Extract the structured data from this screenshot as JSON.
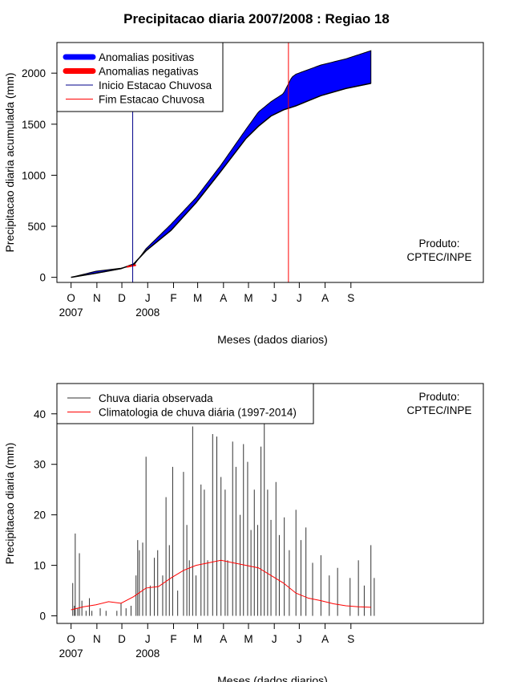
{
  "title": "Precipitacao diaria 2007/2008 : Regiao 18",
  "chart_data": [
    {
      "type": "area",
      "name": "accumulated",
      "xlabel": "Meses (dados diarios)",
      "ylabel": "Precipitacao diaria acumulada (mm)",
      "ylim": [
        -50,
        2300
      ],
      "yticks": [
        0,
        500,
        1000,
        1500,
        2000
      ],
      "month_labels": [
        "O",
        "N",
        "D",
        "J",
        "F",
        "M",
        "A",
        "M",
        "J",
        "J",
        "A",
        "S"
      ],
      "year_labels": [
        {
          "month_index": 0,
          "text": "2007"
        },
        {
          "month_index": 3,
          "text": "2008"
        }
      ],
      "x_unit": "days since Oct 1 2007",
      "xlim": [
        -17,
        495
      ],
      "climatology_accumulated": {
        "x": [
          0,
          30,
          60,
          75,
          90,
          120,
          150,
          180,
          210,
          225,
          240,
          255,
          270,
          300,
          330,
          360
        ],
        "y": [
          0,
          40,
          85,
          130,
          260,
          460,
          730,
          1040,
          1360,
          1480,
          1580,
          1640,
          1680,
          1780,
          1850,
          1900
        ]
      },
      "observed_accumulated": {
        "x": [
          0,
          30,
          60,
          75,
          90,
          120,
          150,
          180,
          210,
          225,
          240,
          255,
          265,
          270,
          300,
          330,
          360
        ],
        "y": [
          0,
          60,
          90,
          115,
          280,
          520,
          780,
          1100,
          1450,
          1620,
          1720,
          1800,
          1960,
          1990,
          2080,
          2140,
          2220
        ]
      },
      "rainy_season_start_day": 74,
      "rainy_season_end_day": 261,
      "legend": [
        {
          "label": "Anomalias positivas",
          "color": "#0000ff",
          "style": "thick"
        },
        {
          "label": "Anomalias negativas",
          "color": "#ff0000",
          "style": "thick"
        },
        {
          "label": "Inicio Estacao Chuvosa",
          "color": "#00008b",
          "style": "thin"
        },
        {
          "label": "Fim Estacao Chuvosa",
          "color": "#ff0000",
          "style": "thin"
        }
      ],
      "product_lines": [
        "Produto:",
        "CPTEC/INPE"
      ]
    },
    {
      "type": "bar",
      "name": "daily",
      "xlabel": "Meses (dados diarios)",
      "ylabel": "Precipitacao diaria (mm)",
      "ylim": [
        -1.5,
        46
      ],
      "yticks": [
        0,
        10,
        20,
        30,
        40
      ],
      "month_labels": [
        "O",
        "N",
        "D",
        "J",
        "F",
        "M",
        "A",
        "M",
        "J",
        "J",
        "A",
        "S"
      ],
      "year_labels": [
        {
          "month_index": 0,
          "text": "2007"
        },
        {
          "month_index": 3,
          "text": "2008"
        }
      ],
      "xlim": [
        -17,
        495
      ],
      "observed_daily": {
        "days": [
          2,
          4,
          5,
          8,
          10,
          13,
          18,
          22,
          25,
          35,
          42,
          55,
          60,
          66,
          72,
          78,
          80,
          82,
          86,
          90,
          95,
          100,
          104,
          110,
          114,
          118,
          122,
          128,
          135,
          139,
          142,
          146,
          150,
          156,
          160,
          164,
          170,
          175,
          180,
          185,
          188,
          194,
          198,
          203,
          207,
          212,
          216,
          220,
          224,
          228,
          232,
          236,
          240,
          246,
          250,
          256,
          262,
          270,
          276,
          282,
          290,
          300,
          310,
          320,
          335,
          345,
          352,
          360,
          364
        ],
        "values": [
          6.5,
          2,
          16.3,
          1.5,
          12.4,
          3,
          1,
          3.5,
          1,
          1.5,
          1,
          1,
          2.5,
          1.5,
          2,
          8,
          15,
          13,
          14.5,
          31.5,
          6,
          11.5,
          13,
          8,
          23.5,
          14,
          29.5,
          5,
          28.5,
          18,
          11,
          37.5,
          8,
          26,
          25,
          11,
          36,
          35.5,
          27.5,
          25,
          11,
          34.5,
          29.5,
          20,
          34,
          30.5,
          17,
          25,
          18,
          33.5,
          44,
          25,
          19,
          26.5,
          16,
          19.5,
          13,
          21,
          15,
          17.5,
          10.5,
          12,
          8,
          9.5,
          7.5,
          11,
          6,
          14,
          7.5
        ]
      },
      "climatology_daily": {
        "x": [
          0,
          15,
          30,
          45,
          60,
          75,
          90,
          105,
          120,
          135,
          150,
          165,
          180,
          195,
          210,
          225,
          240,
          255,
          270,
          285,
          300,
          315,
          330,
          345,
          360
        ],
        "y": [
          1.2,
          1.8,
          2.2,
          2.8,
          2.5,
          3.8,
          5.5,
          5.8,
          7.5,
          9,
          10,
          10.5,
          11,
          10.5,
          10,
          9.5,
          8,
          6.5,
          4.5,
          3.5,
          3,
          2.4,
          2,
          1.8,
          1.7
        ]
      },
      "legend": [
        {
          "label": "Chuva diaria observada",
          "color": "#333333"
        },
        {
          "label": "Climatologia de chuva diária (1997-2014)",
          "color": "#ff0000"
        }
      ],
      "product_lines": [
        "Produto:",
        "CPTEC/INPE"
      ]
    }
  ]
}
